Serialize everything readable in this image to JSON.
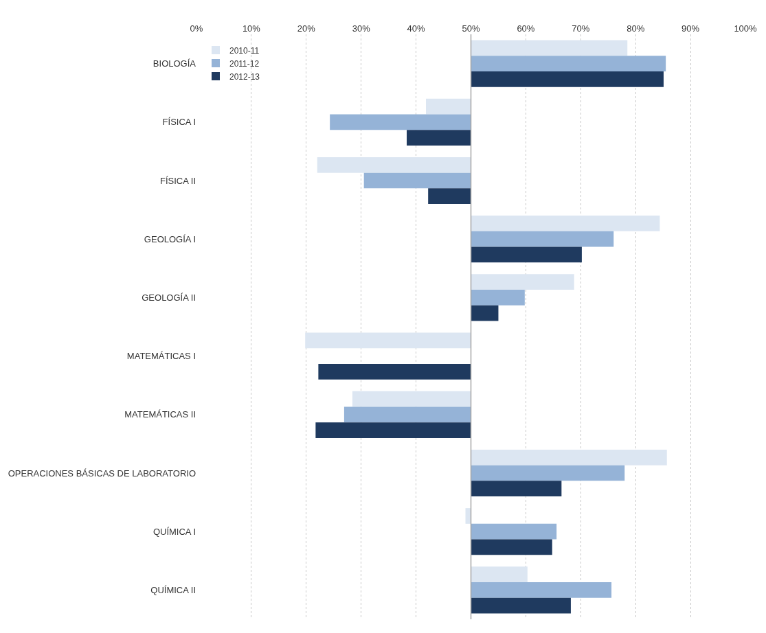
{
  "chart_data": {
    "type": "bar",
    "orientation": "horizontal",
    "categories": [
      "BIOLOGÍA",
      "FÍSICA I",
      "FÍSICA II",
      "GEOLOGÍA I",
      "GEOLOGÍA II",
      "MATEMÁTICAS I",
      "MATEMÁTICAS II",
      "OPERACIONES BÁSICAS DE LABORATORIO",
      "QUÍMICA I",
      "QUÍMICA II"
    ],
    "series": [
      {
        "name": "2010-11",
        "color": "#dce6f2",
        "base": [
          50,
          50,
          50,
          50,
          50,
          50,
          50,
          50,
          50,
          50
        ],
        "values": [
          28.5,
          -8.2,
          -28.0,
          34.4,
          18.8,
          -30.2,
          -21.6,
          35.7,
          -1.0,
          10.3
        ]
      },
      {
        "name": "2011-12",
        "color": "#95b3d7",
        "base": [
          50,
          50,
          50,
          50,
          50,
          null,
          50,
          50,
          50,
          50
        ],
        "values": [
          35.5,
          -25.7,
          -19.5,
          26.0,
          9.8,
          null,
          -23.1,
          28.0,
          15.6,
          25.6
        ]
      },
      {
        "name": "2012-13",
        "color": "#1f3a5f",
        "base": [
          50,
          50,
          50,
          50,
          50,
          50,
          50,
          50,
          50,
          50
        ],
        "values": [
          35.1,
          -11.7,
          -7.8,
          20.2,
          5.0,
          -27.8,
          -28.3,
          16.5,
          14.8,
          18.2
        ]
      }
    ],
    "xlim": [
      0,
      100
    ],
    "xticks": [
      {
        "value": 0,
        "label": "0%"
      },
      {
        "value": 10,
        "label": "10%"
      },
      {
        "value": 20,
        "label": "20%"
      },
      {
        "value": 30,
        "label": "30%"
      },
      {
        "value": 40,
        "label": "40%"
      },
      {
        "value": 50,
        "label": "50%"
      },
      {
        "value": 60,
        "label": "60%"
      },
      {
        "value": 70,
        "label": "70%"
      },
      {
        "value": 80,
        "label": "80%"
      },
      {
        "value": 90,
        "label": "90%"
      },
      {
        "value": 100,
        "label": "100%"
      }
    ],
    "ref_lines": [
      {
        "axis": "x",
        "value": 50,
        "color": "#a6a6a6"
      }
    ],
    "grid": "x",
    "legend": "top left"
  }
}
